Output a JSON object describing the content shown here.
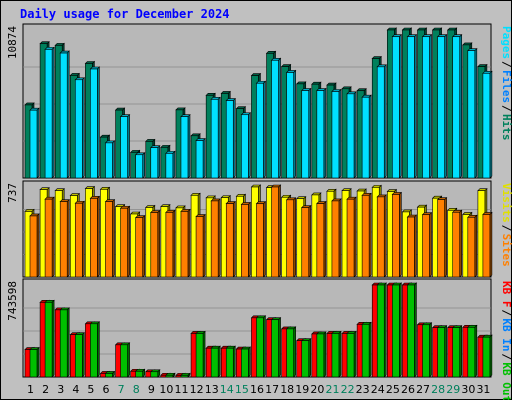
{
  "chart_data": {
    "type": "bar",
    "title": "Daily usage for December 2024",
    "categories": [
      "1",
      "2",
      "3",
      "4",
      "5",
      "6",
      "7",
      "8",
      "9",
      "10",
      "11",
      "12",
      "13",
      "14",
      "15",
      "16",
      "17",
      "18",
      "19",
      "20",
      "21",
      "22",
      "23",
      "24",
      "25",
      "26",
      "27",
      "28",
      "29",
      "30",
      "31"
    ],
    "weekend_days": [
      "7",
      "8",
      "14",
      "15",
      "21",
      "22",
      "28",
      "29"
    ],
    "panels": [
      {
        "id": "hits_files_pages",
        "max_label": "10874",
        "ymax": 10874,
        "legend": [
          "Pages",
          "Files",
          "Hits"
        ],
        "legend_colors": [
          "#00e0ff",
          "#0080ff",
          "#00805c"
        ],
        "series": [
          {
            "name": "Hits",
            "color": "#00805c",
            "values": [
              5367,
              9865,
              9744,
              7536,
              8413,
              3002,
              4989,
              1883,
              2688,
              2250,
              5006,
              3102,
              6075,
              6212,
              5091,
              7523,
              9159,
              8186,
              6916,
              6890,
              6826,
              6554,
              6412,
              8775,
              10874,
              10874,
              10874,
              10874,
              10874,
              9779,
              8185
            ]
          },
          {
            "name": "Files",
            "color": "#00e0ff",
            "values": [
              4982,
              9450,
              9180,
              7217,
              8009,
              2580,
              4506,
              1707,
              2226,
              1810,
              4506,
              2751,
              5782,
              5690,
              4648,
              6962,
              8650,
              7753,
              6425,
              6424,
              6355,
              6183,
              5934,
              8167,
              10380,
              10380,
              10380,
              10380,
              10380,
              9356,
              7693
            ]
          }
        ]
      },
      {
        "id": "visits_sites",
        "max_label": "737",
        "ymax": 737,
        "legend": [
          "Visits",
          "Sites"
        ],
        "legend_colors": [
          "#e0e000",
          "#ff8000"
        ],
        "series": [
          {
            "name": "Visits",
            "color": "#ffff00",
            "values": [
              537,
              715,
              707,
              667,
              724,
              718,
              576,
              516,
              569,
              576,
              566,
              669,
              648,
              650,
              661,
              737,
              732,
              653,
              641,
              672,
              702,
              707,
              704,
              734,
              700,
              533,
              572,
              645,
              546,
              512,
              707
            ]
          },
          {
            "name": "Sites",
            "color": "#ff8000",
            "values": [
              500,
              637,
              617,
              604,
              644,
              617,
              563,
              486,
              528,
              529,
              537,
              495,
              623,
              601,
              594,
              600,
              737,
              632,
              568,
              601,
              623,
              637,
              669,
              656,
              676,
              491,
              510,
              633,
              530,
              489,
              512
            ]
          }
        ]
      },
      {
        "id": "kbytes",
        "max_label": "743598",
        "ymax": 743598,
        "legend": [
          "KB F",
          "KB In",
          "KB Out"
        ],
        "legend_colors": [
          "#ff0000",
          "#0080ff",
          "#00c000"
        ],
        "series": [
          {
            "name": "KB F",
            "color": "#ff0000",
            "values": [
              222036,
              603460,
              542630,
              341925,
              430000,
              28760,
              260100,
              46480,
              42340,
              14120,
              13200,
              352200,
              233020,
              232700,
              226000,
              478360,
              463000,
              388840,
              293610,
              348090,
              352200,
              352200,
              425900,
              743598,
              743598,
              743598,
              422200,
              398640,
              398640,
              401500,
              322000
            ]
          },
          {
            "name": "KB F",
            "color": "#00c000",
            "values": [
              222036,
              603460,
              542630,
              341925,
              430000,
              28760,
              260100,
              46480,
              42340,
              14120,
              13200,
              352200,
              233020,
              232700,
              226000,
              478360,
              463000,
              388840,
              293610,
              348090,
              352200,
              352200,
              425900,
              743598,
              743598,
              743598,
              422200,
              398640,
              398640,
              401500,
              322000
            ]
          }
        ]
      }
    ]
  }
}
